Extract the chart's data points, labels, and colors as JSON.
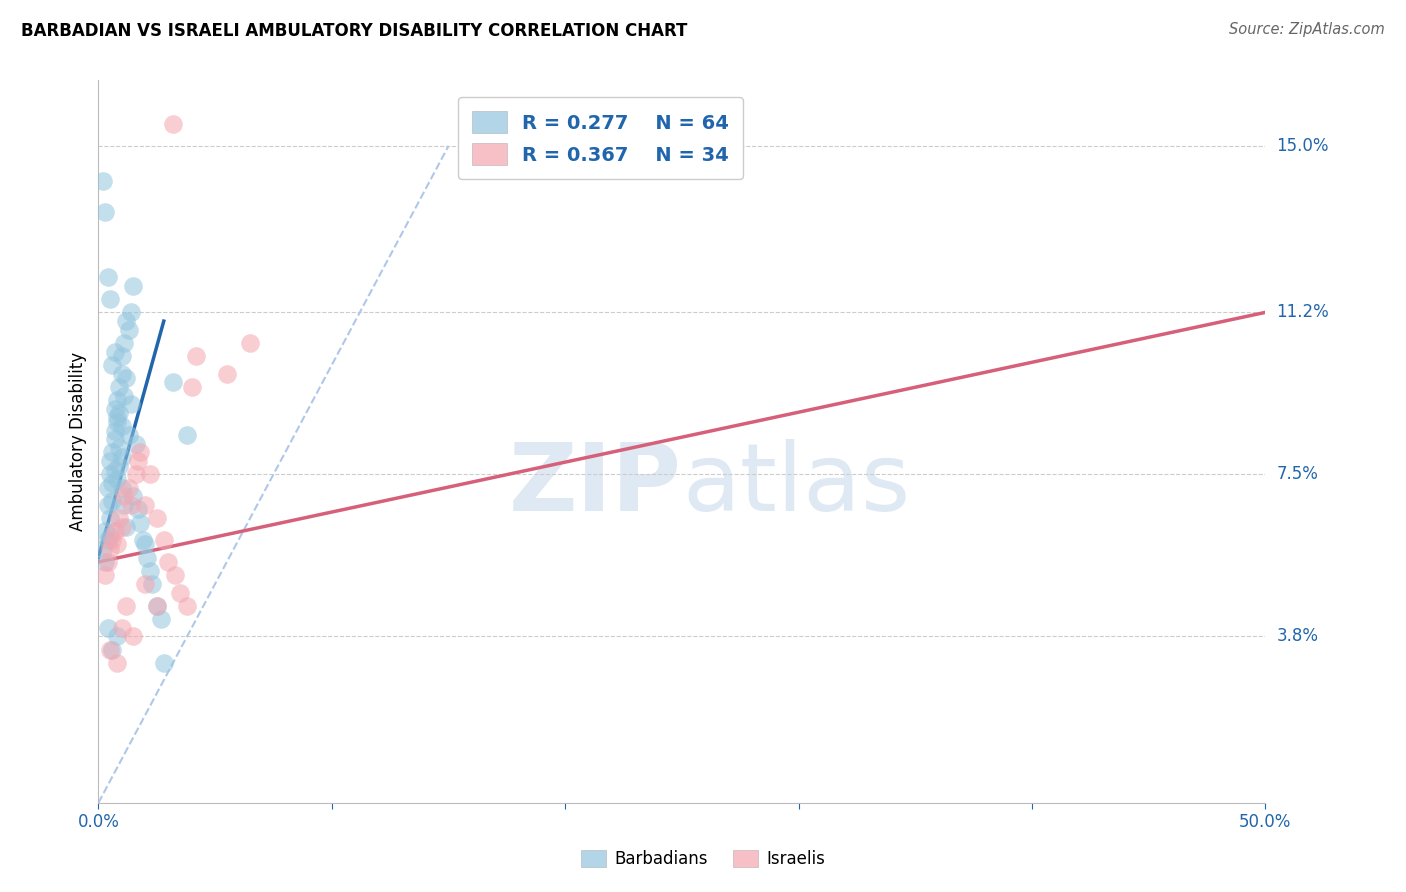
{
  "title": "BARBADIAN VS ISRAELI AMBULATORY DISABILITY CORRELATION CHART",
  "source": "Source: ZipAtlas.com",
  "ylabel": "Ambulatory Disability",
  "yticks_labels": [
    "3.8%",
    "7.5%",
    "11.2%",
    "15.0%"
  ],
  "ytick_values": [
    3.8,
    7.5,
    11.2,
    15.0
  ],
  "xlim": [
    0.0,
    50.0
  ],
  "ylim": [
    0.0,
    16.5
  ],
  "barbadian_R": "0.277",
  "barbadian_N": "64",
  "israeli_R": "0.367",
  "israeli_N": "34",
  "barbadian_color": "#92c5de",
  "barbadian_line_color": "#2166ac",
  "israeli_color": "#f4a6b0",
  "israeli_line_color": "#d6607a",
  "dashed_line_color": "#b0c8e8",
  "watermark_color": "#d8e4f0",
  "barbadian_x": [
    0.2,
    0.3,
    0.3,
    0.4,
    0.4,
    0.4,
    0.5,
    0.5,
    0.5,
    0.5,
    0.6,
    0.6,
    0.6,
    0.7,
    0.7,
    0.7,
    0.7,
    0.8,
    0.8,
    0.8,
    0.9,
    0.9,
    0.9,
    1.0,
    1.0,
    1.0,
    1.0,
    1.1,
    1.1,
    1.2,
    1.2,
    1.3,
    1.3,
    1.4,
    1.4,
    1.5,
    1.5,
    1.6,
    1.7,
    1.8,
    1.9,
    2.0,
    2.1,
    2.2,
    2.3,
    2.5,
    2.7,
    0.2,
    0.3,
    0.4,
    0.5,
    0.6,
    0.7,
    0.8,
    0.9,
    1.0,
    1.1,
    1.2,
    3.2,
    3.8,
    0.8,
    0.6,
    0.4,
    2.8
  ],
  "barbadian_y": [
    5.8,
    6.2,
    5.5,
    6.8,
    7.2,
    6.0,
    7.5,
    6.5,
    7.8,
    6.1,
    8.0,
    7.3,
    6.9,
    8.3,
    7.6,
    9.0,
    8.5,
    9.2,
    8.8,
    7.4,
    9.5,
    8.9,
    7.7,
    10.2,
    9.8,
    8.6,
    7.9,
    10.5,
    9.3,
    11.0,
    9.7,
    10.8,
    8.4,
    11.2,
    9.1,
    11.8,
    7.0,
    8.2,
    6.7,
    6.4,
    6.0,
    5.9,
    5.6,
    5.3,
    5.0,
    4.5,
    4.2,
    14.2,
    13.5,
    12.0,
    11.5,
    10.0,
    10.3,
    8.7,
    8.1,
    7.2,
    6.8,
    6.3,
    9.6,
    8.4,
    3.8,
    3.5,
    4.0,
    3.2
  ],
  "israeli_x": [
    0.3,
    0.4,
    0.5,
    0.6,
    0.7,
    0.8,
    0.9,
    1.0,
    1.1,
    1.3,
    1.4,
    1.6,
    1.7,
    1.8,
    2.0,
    2.2,
    2.5,
    2.8,
    3.0,
    3.3,
    3.5,
    3.8,
    4.0,
    4.2,
    0.5,
    0.8,
    1.0,
    1.2,
    1.5,
    2.0,
    2.5,
    5.5,
    6.5,
    3.2
  ],
  "israeli_y": [
    5.2,
    5.5,
    5.8,
    6.0,
    6.2,
    5.9,
    6.5,
    6.3,
    7.0,
    7.2,
    6.8,
    7.5,
    7.8,
    8.0,
    6.8,
    7.5,
    6.5,
    6.0,
    5.5,
    5.2,
    4.8,
    4.5,
    9.5,
    10.2,
    3.5,
    3.2,
    4.0,
    4.5,
    3.8,
    5.0,
    4.5,
    9.8,
    10.5,
    15.5
  ],
  "barb_trend_x": [
    0.0,
    2.8
  ],
  "barb_trend_y": [
    5.6,
    11.0
  ],
  "isra_trend_x": [
    0.0,
    50.0
  ],
  "isra_trend_y": [
    5.5,
    11.2
  ],
  "diag_x1": 0.0,
  "diag_y1": 0.0,
  "diag_x2": 15.0,
  "diag_y2": 15.0
}
